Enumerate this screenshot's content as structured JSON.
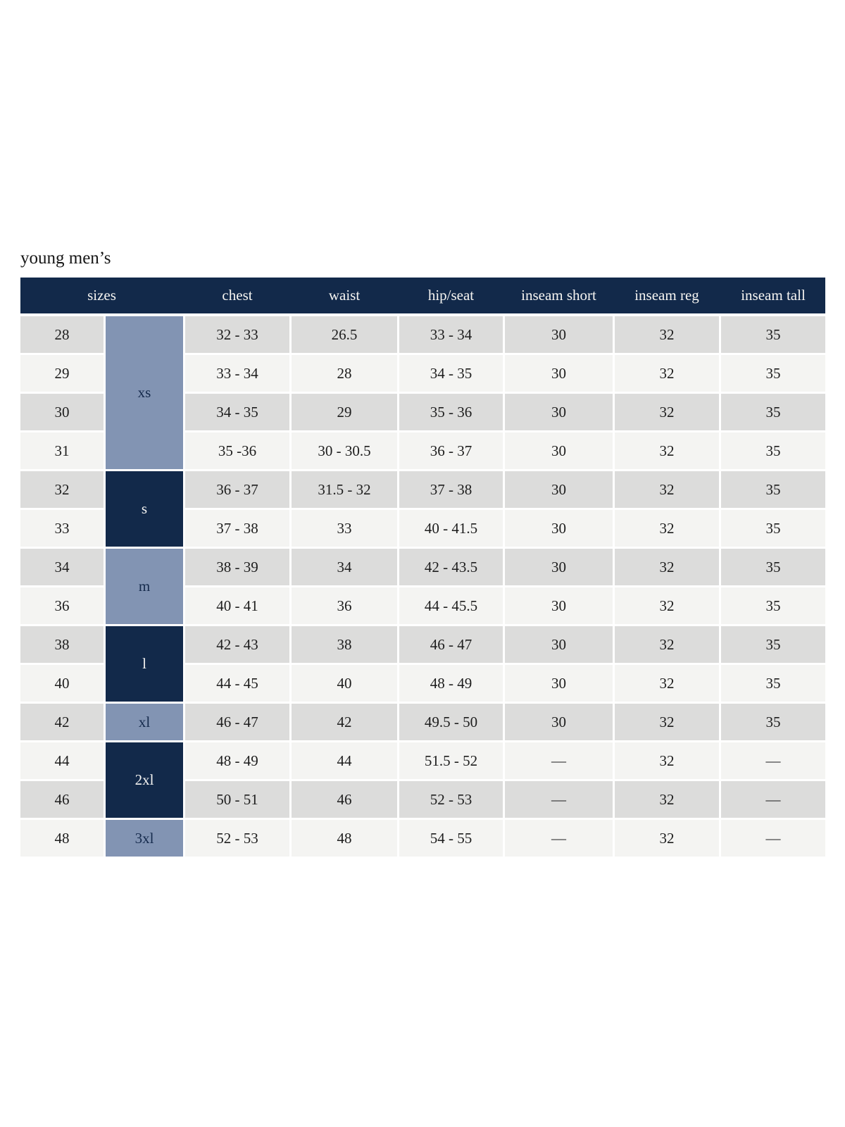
{
  "page": {
    "title": "young men’s"
  },
  "table": {
    "columns": [
      "sizes",
      "chest",
      "waist",
      "hip/seat",
      "inseam short",
      "inseam reg",
      "inseam tall"
    ],
    "size_groups": [
      {
        "label": "xs",
        "span": 4,
        "tone": "light"
      },
      {
        "label": "s",
        "span": 2,
        "tone": "dark"
      },
      {
        "label": "m",
        "span": 2,
        "tone": "light"
      },
      {
        "label": "l",
        "span": 2,
        "tone": "dark"
      },
      {
        "label": "xl",
        "span": 1,
        "tone": "light"
      },
      {
        "label": "2xl",
        "span": 2,
        "tone": "dark"
      },
      {
        "label": "3xl",
        "span": 1,
        "tone": "light"
      }
    ],
    "rows": [
      {
        "size": "28",
        "chest": "32 - 33",
        "waist": "26.5",
        "hip_seat": "33 - 34",
        "inseam_short": "30",
        "inseam_reg": "32",
        "inseam_tall": "35"
      },
      {
        "size": "29",
        "chest": "33 - 34",
        "waist": "28",
        "hip_seat": "34 - 35",
        "inseam_short": "30",
        "inseam_reg": "32",
        "inseam_tall": "35"
      },
      {
        "size": "30",
        "chest": "34 - 35",
        "waist": "29",
        "hip_seat": "35 - 36",
        "inseam_short": "30",
        "inseam_reg": "32",
        "inseam_tall": "35"
      },
      {
        "size": "31",
        "chest": "35 -36",
        "waist": "30 - 30.5",
        "hip_seat": "36 - 37",
        "inseam_short": "30",
        "inseam_reg": "32",
        "inseam_tall": "35"
      },
      {
        "size": "32",
        "chest": "36 - 37",
        "waist": "31.5 - 32",
        "hip_seat": "37 - 38",
        "inseam_short": "30",
        "inseam_reg": "32",
        "inseam_tall": "35"
      },
      {
        "size": "33",
        "chest": "37 - 38",
        "waist": "33",
        "hip_seat": "40 - 41.5",
        "inseam_short": "30",
        "inseam_reg": "32",
        "inseam_tall": "35"
      },
      {
        "size": "34",
        "chest": "38 - 39",
        "waist": "34",
        "hip_seat": "42 - 43.5",
        "inseam_short": "30",
        "inseam_reg": "32",
        "inseam_tall": "35"
      },
      {
        "size": "36",
        "chest": "40 - 41",
        "waist": "36",
        "hip_seat": "44 - 45.5",
        "inseam_short": "30",
        "inseam_reg": "32",
        "inseam_tall": "35"
      },
      {
        "size": "38",
        "chest": "42 - 43",
        "waist": "38",
        "hip_seat": "46 - 47",
        "inseam_short": "30",
        "inseam_reg": "32",
        "inseam_tall": "35"
      },
      {
        "size": "40",
        "chest": "44 - 45",
        "waist": "40",
        "hip_seat": "48 - 49",
        "inseam_short": "30",
        "inseam_reg": "32",
        "inseam_tall": "35"
      },
      {
        "size": "42",
        "chest": "46 - 47",
        "waist": "42",
        "hip_seat": "49.5 - 50",
        "inseam_short": "30",
        "inseam_reg": "32",
        "inseam_tall": "35"
      },
      {
        "size": "44",
        "chest": "48 - 49",
        "waist": "44",
        "hip_seat": "51.5 - 52",
        "inseam_short": "—",
        "inseam_reg": "32",
        "inseam_tall": "—"
      },
      {
        "size": "46",
        "chest": "50 - 51",
        "waist": "46",
        "hip_seat": "52 - 53",
        "inseam_short": "—",
        "inseam_reg": "32",
        "inseam_tall": "—"
      },
      {
        "size": "48",
        "chest": "52 - 53",
        "waist": "48",
        "hip_seat": "54 - 55",
        "inseam_short": "—",
        "inseam_reg": "32",
        "inseam_tall": "—"
      }
    ],
    "colors": {
      "header_bg": "#12294a",
      "group_dark_bg": "#12294a",
      "group_light_bg": "#8294b3",
      "row_gray": "#dcdcdb",
      "row_light": "#f4f4f2",
      "header_text": "#f6f5f2",
      "body_text": "#1d1d1d"
    }
  }
}
